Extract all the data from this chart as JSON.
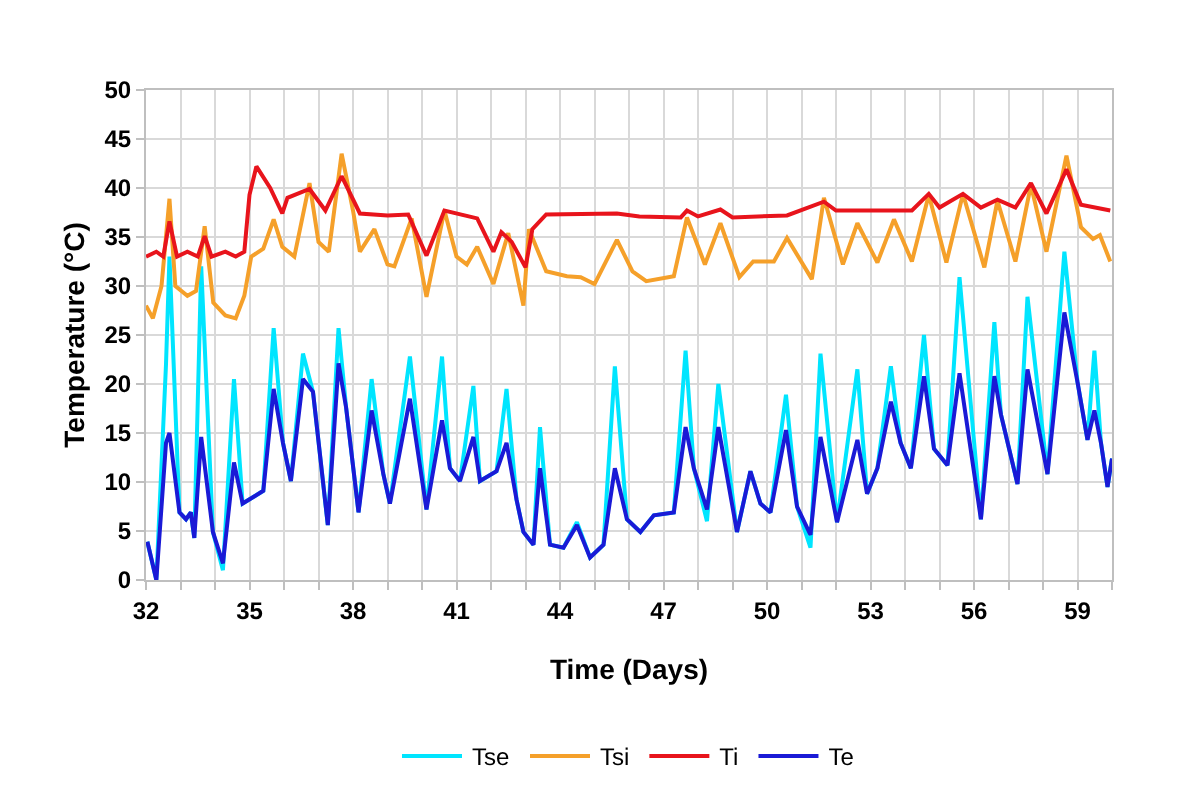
{
  "chart_data": {
    "type": "line",
    "xlabel": "Time (Days)",
    "ylabel": "Temperature (°C)",
    "xlim": [
      32,
      60
    ],
    "ylim": [
      0,
      50
    ],
    "xticks": [
      32,
      {
        "value": 33,
        "label": null
      },
      {
        "value": 34,
        "label": null
      },
      35,
      {
        "value": 36,
        "label": null
      },
      {
        "value": 37,
        "label": null
      },
      38,
      {
        "value": 39,
        "label": null
      },
      {
        "value": 40,
        "label": null
      },
      41,
      {
        "value": 42,
        "label": null
      },
      {
        "value": 43,
        "label": null
      },
      44,
      {
        "value": 45,
        "label": null
      },
      {
        "value": 46,
        "label": null
      },
      47,
      {
        "value": 48,
        "label": null
      },
      {
        "value": 49,
        "label": null
      },
      50,
      {
        "value": 51,
        "label": null
      },
      {
        "value": 52,
        "label": null
      },
      53,
      {
        "value": 54,
        "label": null
      },
      {
        "value": 55,
        "label": null
      },
      56,
      {
        "value": 57,
        "label": null
      },
      {
        "value": 58,
        "label": null
      },
      59,
      {
        "value": 60,
        "label": null
      }
    ],
    "yticks": [
      0,
      5,
      10,
      15,
      20,
      25,
      30,
      35,
      40,
      45,
      50
    ],
    "grid": true,
    "legend": "bottom",
    "marker": "none",
    "line_style": "solid",
    "series": [
      {
        "name": "Tse",
        "color": "#00e5ff",
        "x": [
          32.04,
          32.3,
          32.58,
          32.68,
          32.97,
          33.16,
          33.3,
          33.4,
          33.6,
          33.94,
          34.23,
          34.55,
          34.8,
          35.4,
          35.7,
          35.97,
          36.2,
          36.55,
          36.84,
          37.27,
          37.58,
          37.8,
          38.16,
          38.54,
          38.88,
          39.07,
          39.65,
          40.13,
          40.58,
          40.81,
          41.1,
          41.49,
          41.68,
          42.16,
          42.45,
          42.74,
          42.94,
          43.23,
          43.42,
          43.71,
          44.1,
          44.49,
          44.87,
          45.26,
          45.59,
          45.94,
          46.33,
          46.72,
          47.3,
          47.64,
          47.88,
          48.26,
          48.59,
          49.13,
          49.52,
          49.81,
          50.1,
          50.55,
          50.87,
          51.26,
          51.55,
          52.03,
          52.62,
          52.9,
          53.2,
          53.59,
          53.87,
          54.17,
          54.55,
          54.84,
          55.23,
          55.58,
          56.2,
          56.59,
          56.78,
          57.26,
          57.55,
          58.13,
          58.62,
          59.0,
          59.29,
          59.49,
          59.68,
          59.87,
          60.0
        ],
        "values": [
          3.9,
          0,
          22,
          33,
          6.9,
          6.2,
          6.9,
          4.3,
          32,
          4.9,
          1.0,
          20.5,
          7.8,
          9.1,
          25.7,
          14,
          10.1,
          23.1,
          19.2,
          5.6,
          25.7,
          17.6,
          6.9,
          20.5,
          10.8,
          7.8,
          22.8,
          7.2,
          22.8,
          11.4,
          10.1,
          19.8,
          10.1,
          11.1,
          19.5,
          8.2,
          4.9,
          3.6,
          15.6,
          3.6,
          3.3,
          5.9,
          2.3,
          3.6,
          21.8,
          6.2,
          4.9,
          6.6,
          6.9,
          23.4,
          11.4,
          6.0,
          20,
          4.9,
          11.1,
          7.8,
          6.9,
          18.9,
          7.5,
          3.3,
          23.1,
          5.9,
          21.5,
          8.8,
          11.4,
          21.8,
          14,
          11.4,
          25,
          13.4,
          11.7,
          30.9,
          6.2,
          26.3,
          16.9,
          9.8,
          28.9,
          10.8,
          33.5,
          20.2,
          14.3,
          23.4,
          14,
          9.5,
          12.4
        ]
      },
      {
        "name": "Tsi",
        "color": "#f5a02a",
        "x": [
          32.0,
          32.2,
          32.45,
          32.68,
          32.85,
          33.2,
          33.45,
          33.7,
          33.95,
          34.3,
          34.6,
          34.85,
          35.05,
          35.4,
          35.7,
          35.95,
          36.3,
          36.74,
          37.0,
          37.3,
          37.67,
          38.0,
          38.2,
          38.62,
          39.0,
          39.2,
          39.7,
          40.13,
          40.65,
          41.0,
          41.3,
          41.6,
          42.07,
          42.5,
          42.94,
          43.1,
          43.6,
          44.2,
          44.6,
          45.0,
          45.65,
          46.1,
          46.5,
          47.3,
          47.68,
          48.2,
          48.65,
          49.2,
          49.6,
          50.2,
          50.58,
          51.3,
          51.65,
          52.2,
          52.62,
          53.2,
          53.68,
          54.2,
          54.69,
          55.2,
          55.68,
          56.3,
          56.68,
          57.2,
          57.65,
          58.1,
          58.68,
          59.1,
          59.45,
          59.65,
          59.95
        ],
        "values": [
          28,
          26.7,
          30,
          38.9,
          30,
          29,
          29.5,
          36.1,
          28.3,
          27,
          26.7,
          29,
          33,
          33.8,
          36.8,
          34,
          33,
          40.5,
          34.5,
          33.5,
          43.5,
          37.7,
          33.5,
          35.8,
          32.2,
          32,
          36.9,
          28.9,
          37.7,
          33,
          32.2,
          34,
          30.2,
          35.4,
          28,
          35.8,
          31.5,
          31,
          30.9,
          30.2,
          34.7,
          31.5,
          30.5,
          31,
          37,
          32.2,
          36.4,
          30.9,
          32.5,
          32.5,
          34.9,
          30.7,
          39,
          32.2,
          36.4,
          32.4,
          36.8,
          32.5,
          39.3,
          32.4,
          39.4,
          31.9,
          38.7,
          32.5,
          40.3,
          33.5,
          43.3,
          36,
          34.8,
          35.2,
          32.5
        ]
      },
      {
        "name": "Ti",
        "color": "#e8141c",
        "x": [
          32.0,
          32.3,
          32.5,
          32.68,
          32.9,
          33.2,
          33.5,
          33.7,
          33.9,
          34.3,
          34.6,
          34.85,
          35.0,
          35.2,
          35.6,
          35.95,
          36.1,
          36.74,
          37.2,
          37.67,
          38.2,
          39.0,
          39.6,
          40.13,
          40.65,
          41.6,
          42.07,
          42.3,
          42.6,
          43.0,
          43.2,
          43.6,
          45.65,
          46.3,
          47.5,
          47.68,
          48.0,
          48.65,
          49.0,
          50.58,
          51.65,
          52.0,
          54.2,
          54.69,
          55.0,
          55.68,
          56.2,
          56.68,
          57.2,
          57.65,
          58.1,
          58.68,
          59.1,
          59.95
        ],
        "values": [
          33,
          33.5,
          33,
          36.6,
          33,
          33.5,
          33,
          35.1,
          33,
          33.5,
          33,
          33.5,
          39.3,
          42.2,
          40,
          37.4,
          39,
          39.9,
          37.7,
          41.2,
          37.4,
          37.2,
          37.3,
          33.1,
          37.7,
          36.9,
          33.5,
          35.5,
          34.5,
          31.9,
          35.8,
          37.3,
          37.4,
          37.1,
          37.0,
          37.7,
          37.1,
          37.8,
          37.0,
          37.2,
          38.6,
          37.7,
          37.7,
          39.4,
          38,
          39.4,
          38,
          38.8,
          38,
          40.5,
          37.4,
          41.9,
          38.3,
          37.7
        ]
      },
      {
        "name": "Te",
        "color": "#1a1ad6",
        "x": [
          32.04,
          32.3,
          32.58,
          32.68,
          32.97,
          33.16,
          33.3,
          33.4,
          33.6,
          33.94,
          34.23,
          34.55,
          34.8,
          35.4,
          35.7,
          35.97,
          36.2,
          36.55,
          36.84,
          37.27,
          37.58,
          37.8,
          38.16,
          38.54,
          38.88,
          39.07,
          39.65,
          40.13,
          40.58,
          40.81,
          41.1,
          41.49,
          41.68,
          42.16,
          42.45,
          42.74,
          42.94,
          43.23,
          43.42,
          43.71,
          44.1,
          44.49,
          44.87,
          45.26,
          45.59,
          45.94,
          46.33,
          46.72,
          47.3,
          47.64,
          47.88,
          48.26,
          48.59,
          49.13,
          49.52,
          49.81,
          50.1,
          50.55,
          50.87,
          51.26,
          51.55,
          52.03,
          52.62,
          52.9,
          53.2,
          53.59,
          53.87,
          54.17,
          54.55,
          54.84,
          55.23,
          55.58,
          56.2,
          56.59,
          56.78,
          57.26,
          57.55,
          58.13,
          58.62,
          59.0,
          59.29,
          59.49,
          59.68,
          59.87,
          60.0
        ],
        "values": [
          3.9,
          0,
          14,
          15,
          6.9,
          6.2,
          6.9,
          4.3,
          14.6,
          4.9,
          1.7,
          12,
          7.8,
          9.1,
          19.5,
          14,
          10.1,
          20.5,
          19.2,
          5.6,
          22.1,
          17.6,
          6.9,
          17.3,
          10.8,
          7.8,
          18.5,
          7.2,
          16.3,
          11.4,
          10.1,
          14.6,
          10.1,
          11.1,
          14,
          8.2,
          4.9,
          3.6,
          11.4,
          3.6,
          3.3,
          5.6,
          2.3,
          3.6,
          11.4,
          6.2,
          4.9,
          6.6,
          6.9,
          15.6,
          11.4,
          7.2,
          15.6,
          4.9,
          11.1,
          7.8,
          6.9,
          15.3,
          7.5,
          4.6,
          14.6,
          5.9,
          14.3,
          8.8,
          11.4,
          18.2,
          14,
          11.4,
          20.8,
          13.4,
          11.7,
          21.1,
          6.2,
          20.8,
          16.9,
          9.8,
          21.5,
          10.8,
          27.3,
          20.2,
          14.3,
          17.3,
          14,
          9.5,
          12.4
        ]
      }
    ]
  }
}
